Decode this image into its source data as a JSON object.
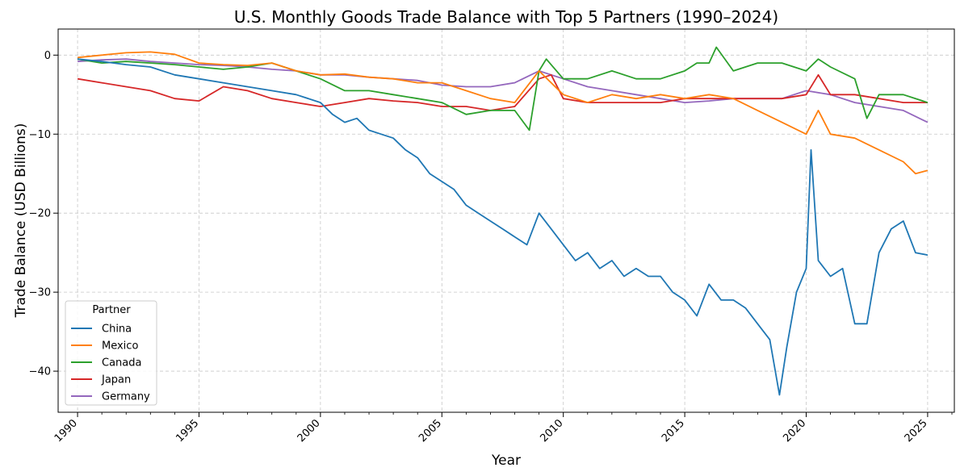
{
  "chart_data": {
    "type": "line",
    "title": "U.S. Monthly Goods Trade Balance with Top 5 Partners (1990–2024)",
    "xlabel": "Year",
    "ylabel": "Trade Balance (USD Billions)",
    "xlim": [
      1989.2,
      2026.1
    ],
    "ylim": [
      -45.2,
      3.3
    ],
    "grid": true,
    "legend": {
      "title": "Partner",
      "placement": "lower-left"
    },
    "x_ticks": [
      "1990",
      "1995",
      "2000",
      "2005",
      "2010",
      "2015",
      "2020",
      "2025"
    ],
    "y_ticks": [
      "0",
      "−10",
      "−20",
      "−30",
      "−40"
    ],
    "y_tick_values": [
      0,
      -10,
      -20,
      -30,
      -40
    ],
    "x_tick_values": [
      1990,
      1995,
      2000,
      2005,
      2010,
      2015,
      2020,
      2025
    ],
    "series": [
      {
        "name": "China",
        "color": "#1f77b4",
        "x": [
          1990,
          1991,
          1992,
          1993,
          1994,
          1995,
          1996,
          1997,
          1998,
          1999,
          2000,
          2000.5,
          2001,
          2001.5,
          2002,
          2002.5,
          2003,
          2003.5,
          2004,
          2004.5,
          2005,
          2005.5,
          2006,
          2006.5,
          2007,
          2007.5,
          2008,
          2008.5,
          2009,
          2009.5,
          2010,
          2010.5,
          2011,
          2011.5,
          2012,
          2012.5,
          2013,
          2013.5,
          2014,
          2014.5,
          2015,
          2015.5,
          2016,
          2016.5,
          2017,
          2017.5,
          2018,
          2018.5,
          2018.9,
          2019.2,
          2019.6,
          2020,
          2020.2,
          2020.5,
          2021,
          2021.5,
          2022,
          2022.5,
          2023,
          2023.5,
          2024,
          2024.5,
          2025
        ],
        "y": [
          -0.5,
          -0.8,
          -1.2,
          -1.5,
          -2.5,
          -3,
          -3.5,
          -4,
          -4.5,
          -5,
          -6,
          -7.5,
          -8.5,
          -8,
          -9.5,
          -10,
          -10.5,
          -12,
          -13,
          -15,
          -16,
          -17,
          -19,
          -20,
          -21,
          -22,
          -23,
          -24,
          -20,
          -22,
          -24,
          -26,
          -25,
          -27,
          -26,
          -28,
          -27,
          -28,
          -28,
          -30,
          -31,
          -33,
          -29,
          -31,
          -31,
          -32,
          -34,
          -36,
          -43,
          -37,
          -30,
          -27,
          -12,
          -26,
          -28,
          -27,
          -34,
          -34,
          -25,
          -22,
          -21,
          -25,
          -25.3
        ]
      },
      {
        "name": "Mexico",
        "color": "#ff7f0e",
        "x": [
          1990,
          1991,
          1992,
          1993,
          1994,
          1995,
          1996,
          1997,
          1998,
          1999,
          2000,
          2001,
          2002,
          2003,
          2004,
          2005,
          2006,
          2007,
          2008,
          2009,
          2010,
          2011,
          2012,
          2013,
          2014,
          2015,
          2016,
          2017,
          2018,
          2019,
          2020,
          2020.5,
          2021,
          2022,
          2023,
          2024,
          2024.5,
          2025
        ],
        "y": [
          -0.3,
          0,
          0.3,
          0.4,
          0.1,
          -1,
          -1.2,
          -1.3,
          -1,
          -2,
          -2.5,
          -2.4,
          -2.8,
          -3,
          -3.5,
          -3.5,
          -4.5,
          -5.5,
          -6,
          -2,
          -5,
          -6,
          -5,
          -5.5,
          -5,
          -5.5,
          -5,
          -5.5,
          -7,
          -8.5,
          -10,
          -7,
          -10,
          -10.5,
          -12,
          -13.5,
          -15,
          -14.6
        ]
      },
      {
        "name": "Canada",
        "color": "#2ca02c",
        "x": [
          1990,
          1991,
          1992,
          1993,
          1994,
          1995,
          1996,
          1997,
          1998,
          1999,
          2000,
          2001,
          2002,
          2003,
          2004,
          2005,
          2006,
          2007,
          2008,
          2008.6,
          2009,
          2009.3,
          2010,
          2011,
          2012,
          2013,
          2014,
          2015,
          2015.5,
          2016,
          2016.3,
          2017,
          2018,
          2019,
          2020,
          2020.5,
          2021,
          2022,
          2022.5,
          2023,
          2024,
          2025
        ],
        "y": [
          -0.5,
          -1,
          -0.8,
          -1,
          -1.2,
          -1.5,
          -1.8,
          -1.5,
          -1,
          -2,
          -3,
          -4.5,
          -4.5,
          -5,
          -5.5,
          -6,
          -7.5,
          -7,
          -7,
          -9.5,
          -2,
          -0.5,
          -3,
          -3,
          -2,
          -3,
          -3,
          -2,
          -1,
          -1,
          1,
          -2,
          -1,
          -1,
          -2,
          -0.5,
          -1.5,
          -3,
          -8,
          -5,
          -5,
          -6
        ]
      },
      {
        "name": "Japan",
        "color": "#d62728",
        "x": [
          1990,
          1991,
          1992,
          1993,
          1994,
          1995,
          1996,
          1997,
          1998,
          1999,
          2000,
          2001,
          2002,
          2003,
          2004,
          2005,
          2006,
          2007,
          2008,
          2009,
          2009.5,
          2010,
          2011,
          2012,
          2013,
          2014,
          2015,
          2016,
          2017,
          2018,
          2019,
          2020,
          2020.5,
          2021,
          2022,
          2023,
          2024,
          2025
        ],
        "y": [
          -3,
          -3.5,
          -4,
          -4.5,
          -5.5,
          -5.8,
          -4,
          -4.5,
          -5.5,
          -6,
          -6.5,
          -6,
          -5.5,
          -5.8,
          -6,
          -6.5,
          -6.5,
          -7,
          -6.5,
          -3,
          -2.5,
          -5.5,
          -6,
          -6,
          -6,
          -6,
          -5.5,
          -5.5,
          -5.5,
          -5.5,
          -5.5,
          -5,
          -2.5,
          -5,
          -5,
          -5.5,
          -6,
          -6
        ]
      },
      {
        "name": "Germany",
        "color": "#9467bd",
        "x": [
          1990,
          1991,
          1992,
          1993,
          1994,
          1995,
          1996,
          1997,
          1998,
          1999,
          2000,
          2001,
          2002,
          2003,
          2004,
          2005,
          2006,
          2007,
          2008,
          2009,
          2010,
          2011,
          2012,
          2013,
          2014,
          2015,
          2016,
          2017,
          2018,
          2019,
          2020,
          2021,
          2022,
          2023,
          2024,
          2025
        ],
        "y": [
          -0.8,
          -0.6,
          -0.5,
          -0.8,
          -1,
          -1.2,
          -1.3,
          -1.5,
          -1.8,
          -2,
          -2.5,
          -2.5,
          -2.8,
          -3,
          -3.2,
          -3.8,
          -4,
          -4,
          -3.5,
          -2,
          -3,
          -4,
          -4.5,
          -5,
          -5.5,
          -6,
          -5.8,
          -5.5,
          -5.5,
          -5.5,
          -4.5,
          -5,
          -6,
          -6.5,
          -7,
          -8.5
        ]
      }
    ]
  }
}
